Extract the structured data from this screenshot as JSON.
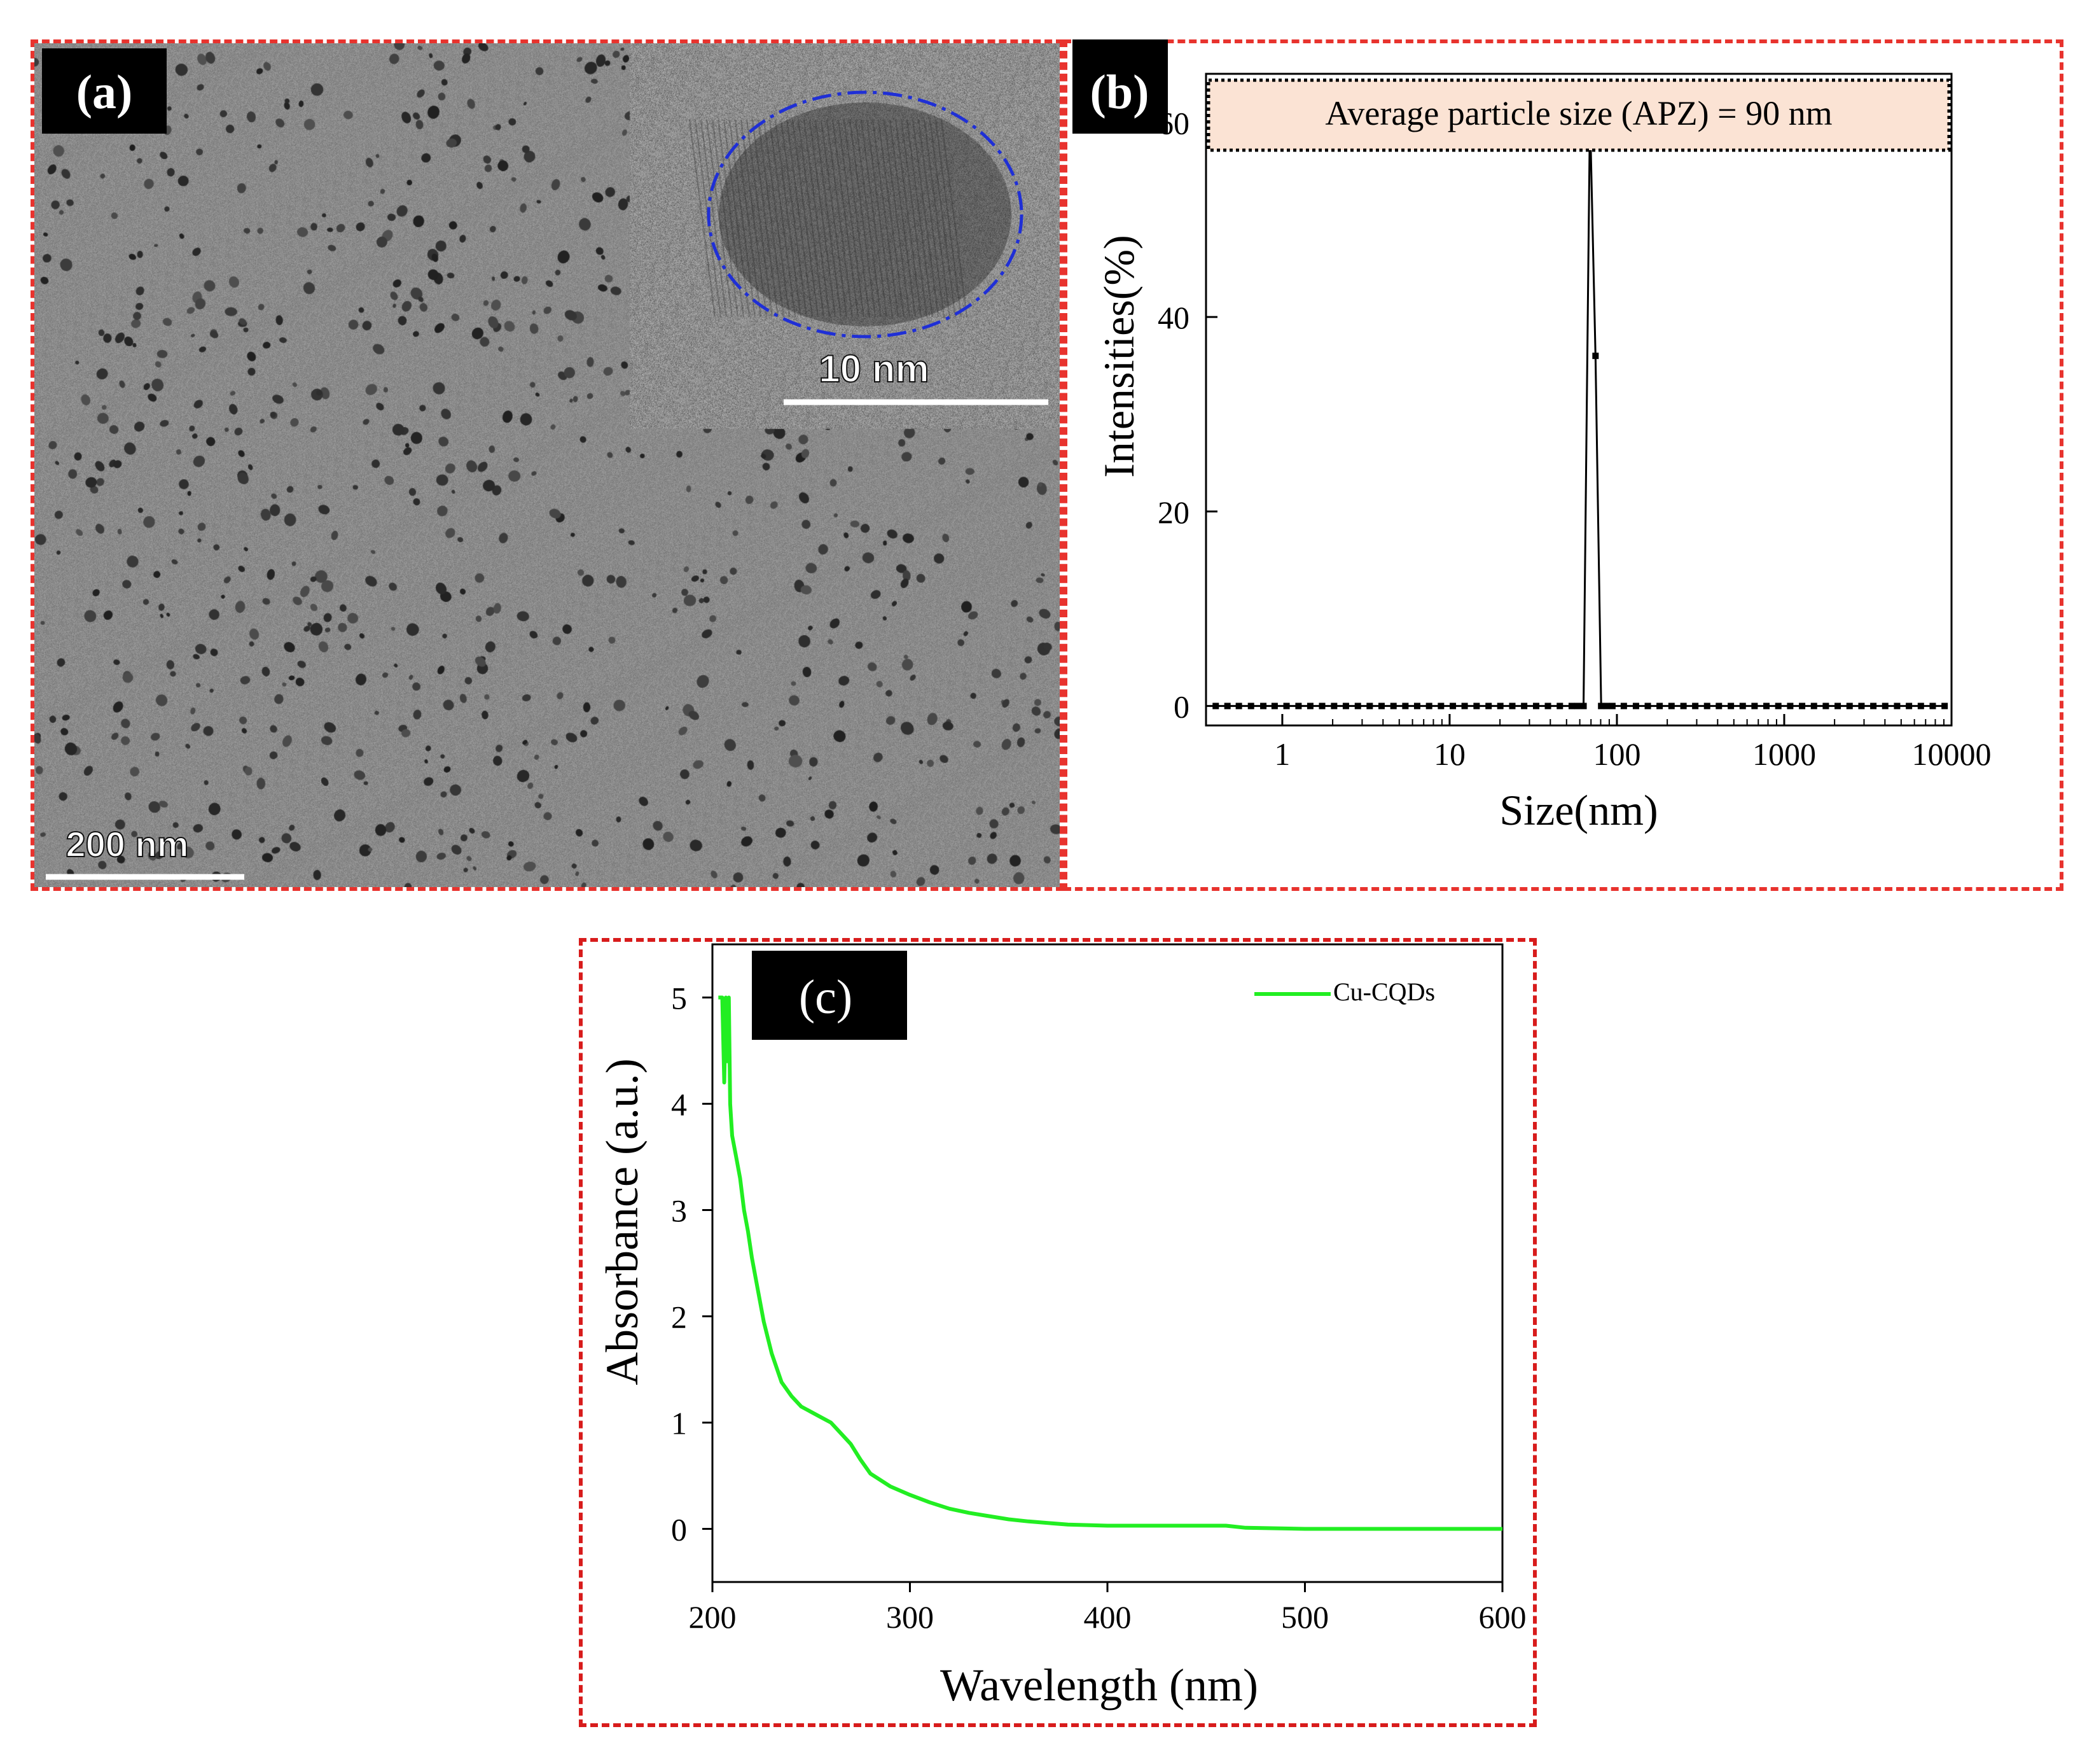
{
  "panels": {
    "a": {
      "tag": "(a)",
      "scale_bar_label": "200 nm",
      "inset_scale_bar_label": "10 nm",
      "inset_circle_color": "#1f2fd6"
    },
    "b": {
      "tag": "(b)"
    },
    "c": {
      "tag": "(c)"
    }
  },
  "colors": {
    "frame": "#e8332e",
    "line_c": "#22ee22"
  },
  "chart_data": [
    {
      "panel": "b",
      "type": "line",
      "annotation": "Average particle size (APZ) = 90 nm",
      "xlabel": "Size(nm)",
      "ylabel": "Intensities(%)",
      "xscale": "log",
      "xlim": [
        0.35,
        10000
      ],
      "ylim": [
        -2,
        65
      ],
      "xticks": [
        1,
        10,
        100,
        1000,
        10000
      ],
      "xtick_labels": [
        "1",
        "10",
        "100",
        "1000",
        "10000"
      ],
      "yticks": [
        0,
        20,
        40,
        60
      ],
      "ytick_labels": [
        "0",
        "20",
        "40",
        "60"
      ],
      "series": [
        {
          "x": [
            0.4,
            0.47,
            0.55,
            0.65,
            0.77,
            0.9,
            1.06,
            1.25,
            1.47,
            1.73,
            2.04,
            2.4,
            2.83,
            3.33,
            3.92,
            4.62,
            5.44,
            6.4,
            7.54,
            8.88,
            10.46,
            12.3,
            14.5,
            17.1,
            20.1,
            23.7,
            27.9,
            32.9,
            38.7,
            45.6,
            53.7,
            58.0,
            63.2,
            69.0,
            74.5,
            80.5,
            87.0,
            94.0,
            110,
            130,
            153,
            180,
            212,
            250,
            294,
            346,
            407,
            480,
            565,
            665,
            783,
            922,
            1086,
            1279,
            1506,
            1773,
            2088,
            2459,
            2896,
            3410,
            4016,
            4729,
            5569,
            6558,
            7723,
            9094
          ],
          "y": [
            0,
            0,
            0,
            0,
            0,
            0,
            0,
            0,
            0,
            0,
            0,
            0,
            0,
            0,
            0,
            0,
            0,
            0,
            0,
            0,
            0,
            0,
            0,
            0,
            0,
            0,
            0,
            0,
            0,
            0,
            0,
            0,
            0,
            61,
            36,
            0,
            0,
            0,
            0,
            0,
            0,
            0,
            0,
            0,
            0,
            0,
            0,
            0,
            0,
            0,
            0,
            0,
            0,
            0,
            0,
            0,
            0,
            0,
            0,
            0,
            0,
            0,
            0,
            0,
            0,
            0
          ]
        }
      ]
    },
    {
      "panel": "c",
      "type": "line",
      "xlabel": "Wavelength (nm)",
      "ylabel": "Absorbance (a.u.)",
      "xlim": [
        200,
        600
      ],
      "ylim": [
        -0.5,
        5.5
      ],
      "xticks": [
        200,
        300,
        400,
        500,
        600
      ],
      "xtick_labels": [
        "200",
        "300",
        "400",
        "500",
        "600"
      ],
      "yticks": [
        0,
        1,
        2,
        3,
        4,
        5
      ],
      "ytick_labels": [
        "0",
        "1",
        "2",
        "3",
        "4",
        "5"
      ],
      "legend": "top-right",
      "series": [
        {
          "name": "Cu-CQDs",
          "x": [
            203,
            205,
            206,
            206.8,
            207.5,
            208.3,
            209,
            210,
            212,
            214,
            216,
            218,
            220,
            223,
            226,
            230,
            235,
            240,
            245,
            250,
            255,
            260,
            265,
            270,
            275,
            280,
            290,
            300,
            310,
            320,
            330,
            340,
            350,
            360,
            380,
            400,
            430,
            460,
            470,
            500,
            550,
            600
          ],
          "y": [
            5.0,
            5.0,
            4.2,
            5.0,
            4.4,
            5.0,
            4.0,
            3.7,
            3.5,
            3.3,
            3.0,
            2.8,
            2.55,
            2.25,
            1.95,
            1.65,
            1.38,
            1.25,
            1.15,
            1.1,
            1.05,
            1.0,
            0.9,
            0.8,
            0.65,
            0.52,
            0.4,
            0.32,
            0.25,
            0.19,
            0.15,
            0.12,
            0.09,
            0.07,
            0.04,
            0.03,
            0.03,
            0.03,
            0.01,
            0.0,
            0.0,
            0.0
          ]
        }
      ]
    }
  ]
}
